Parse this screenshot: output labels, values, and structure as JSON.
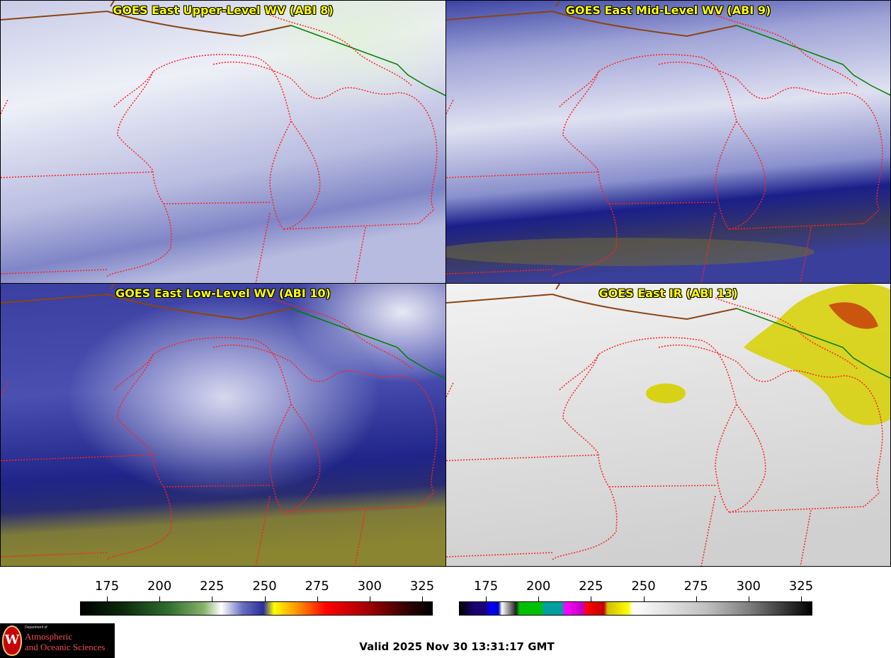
{
  "panels": [
    {
      "title": "GOES East Upper-Level WV (ABI 8)",
      "style": "upper"
    },
    {
      "title": "GOES East Mid-Level WV (ABI 9)",
      "style": "mid"
    },
    {
      "title": "GOES East Low-Level WV (ABI 10)",
      "style": "low"
    },
    {
      "title": "GOES East IR (ABI 13)",
      "style": "ir"
    }
  ],
  "colorbars": [
    {
      "name": "water-vapor-colorbar",
      "ticks": [
        "175",
        "200",
        "225",
        "250",
        "275",
        "300",
        "325"
      ],
      "stops": [
        "#000000",
        "#0b2a0b",
        "#2f6e2f",
        "#86b26a",
        "#ffffff",
        "#2a2f9a",
        "#fffe00",
        "#ff8c00",
        "#ff0000",
        "#a00000",
        "#3a0000",
        "#000000"
      ]
    },
    {
      "name": "ir-colorbar",
      "ticks": [
        "175",
        "200",
        "225",
        "250",
        "275",
        "300",
        "325"
      ],
      "stops": [
        "#000000",
        "#1a0070",
        "#0000ff",
        "#ffffff",
        "#00c000",
        "#00a0a0",
        "#ff00ff",
        "#ff0000",
        "#d0c000",
        "#ffff00",
        "#ffffff",
        "#808080",
        "#000000"
      ]
    }
  ],
  "valid_time": "Valid 2025 Nov 30 13:31:17 GMT",
  "logo": {
    "dept": "Department of",
    "line1": "Atmospheric",
    "line2": "and Oceanic Sciences"
  },
  "colors": {
    "state_border": "#ff2020",
    "country_border": "#008000",
    "coast_border": "#8b4513",
    "title_text": "#ffff00"
  }
}
